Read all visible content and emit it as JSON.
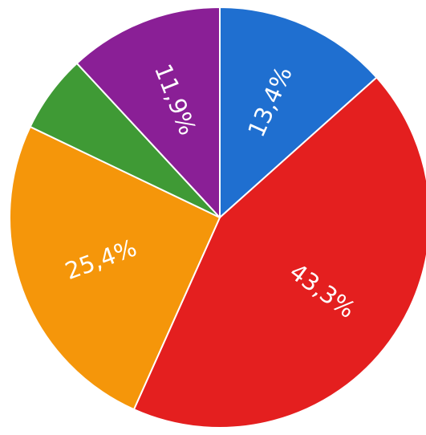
{
  "chart_data": {
    "type": "pie",
    "slices": [
      {
        "label": "13,4%",
        "value": 13.4,
        "color": "#1f6fd0"
      },
      {
        "label": "43,3%",
        "value": 43.3,
        "color": "#e41f1f"
      },
      {
        "label": "25,4%",
        "value": 25.4,
        "color": "#f5960a"
      },
      {
        "label": "",
        "value": 6.0,
        "color": "#3f9a35"
      },
      {
        "label": "11,9%",
        "value": 11.9,
        "color": "#8a1f96"
      }
    ],
    "start_direction": "top",
    "direction": "clockwise",
    "legend": "none"
  }
}
